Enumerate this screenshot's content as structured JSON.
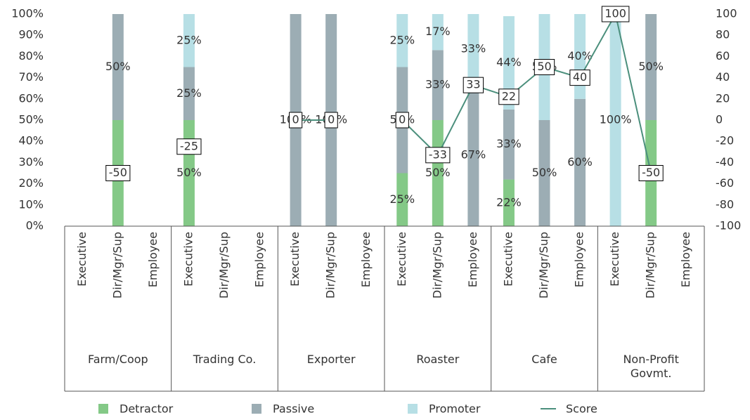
{
  "chart_data": {
    "type": "stacked_bar_line",
    "categories": [
      "Executive",
      "Dir/Mgr/Sup",
      "Employee",
      "Executive",
      "Dir/Mgr/Sup",
      "Employee",
      "Executive",
      "Dir/Mgr/Sup",
      "Employee",
      "Executive",
      "Dir/Mgr/Sup",
      "Employee",
      "Executive",
      "Dir/Mgr/Sup",
      "Employee",
      "Executive",
      "Dir/Mgr/Sup",
      "Employee"
    ],
    "groups": [
      "Farm/Coop",
      "Trading Co.",
      "Exporter",
      "Roaster",
      "Cafe",
      "Non-Profit Govmt."
    ],
    "series": [
      {
        "name": "Detractor",
        "color": "#84c987",
        "values": [
          0,
          50,
          0,
          50,
          0,
          0,
          0,
          0,
          0,
          25,
          50,
          0,
          22,
          0,
          0,
          0,
          50,
          0
        ],
        "value_labels": [
          null,
          "50%",
          null,
          "50%",
          null,
          null,
          null,
          null,
          null,
          "25%",
          "50%",
          null,
          "22%",
          null,
          null,
          null,
          "50%",
          null
        ]
      },
      {
        "name": "Passive",
        "color": "#9cadb4",
        "values": [
          0,
          50,
          0,
          25,
          0,
          0,
          100,
          100,
          0,
          50,
          33,
          67,
          33,
          50,
          60,
          0,
          50,
          0
        ],
        "value_labels": [
          null,
          "50%",
          null,
          "25%",
          null,
          null,
          "100%",
          "100%",
          null,
          "50%",
          "33%",
          "67%",
          "33%",
          "50%",
          "60%",
          null,
          "50%",
          null
        ]
      },
      {
        "name": "Promoter",
        "color": "#b7dfe5",
        "values": [
          0,
          0,
          0,
          25,
          0,
          0,
          0,
          0,
          0,
          25,
          17,
          33,
          44,
          50,
          40,
          100,
          0,
          0
        ],
        "value_labels": [
          null,
          null,
          null,
          "25%",
          null,
          null,
          null,
          null,
          null,
          "25%",
          "17%",
          "33%",
          "44%",
          "50%",
          "40%",
          "100%",
          null,
          null
        ]
      },
      {
        "name": "Score",
        "color": "#4b8f7c",
        "axis": "y2",
        "values": [
          null,
          -50,
          null,
          -25,
          null,
          null,
          0,
          0,
          null,
          0,
          -33,
          33,
          22,
          50,
          40,
          100,
          -50,
          null
        ]
      }
    ],
    "ylim": [
      0,
      100
    ],
    "yticks": [
      {
        "value": 0,
        "label": "0%"
      },
      {
        "value": 10,
        "label": "10%"
      },
      {
        "value": 20,
        "label": "20%"
      },
      {
        "value": 30,
        "label": "30%"
      },
      {
        "value": 40,
        "label": "40%"
      },
      {
        "value": 50,
        "label": "50%"
      },
      {
        "value": 60,
        "label": "60%"
      },
      {
        "value": 70,
        "label": "70%"
      },
      {
        "value": 80,
        "label": "80%"
      },
      {
        "value": 90,
        "label": "90%"
      },
      {
        "value": 100,
        "label": "100%"
      }
    ],
    "y2lim": [
      -100,
      100
    ],
    "y2ticks": [
      -100,
      -80,
      -60,
      -40,
      -20,
      0,
      20,
      40,
      60,
      80,
      100
    ],
    "legend": "bottom"
  }
}
